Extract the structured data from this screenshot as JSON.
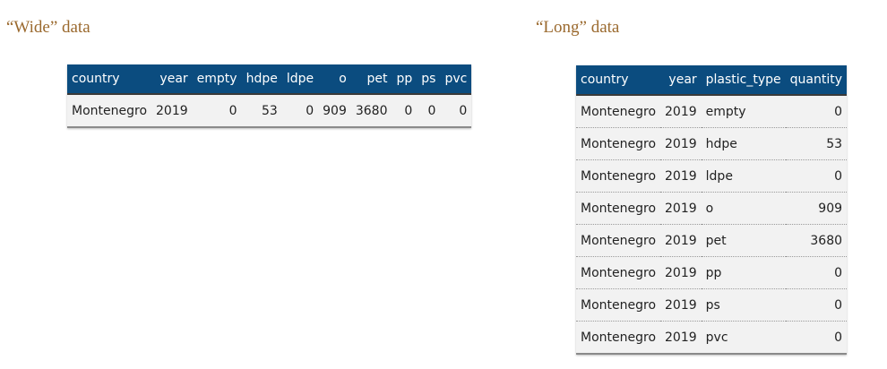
{
  "wide": {
    "caption": "“Wide” data",
    "headers": [
      "country",
      "year",
      "empty",
      "hdpe",
      "ldpe",
      "o",
      "pet",
      "pp",
      "ps",
      "pvc"
    ],
    "row": [
      "Montenegro",
      "2019",
      "0",
      "53",
      "0",
      "909",
      "3680",
      "0",
      "0",
      "0"
    ]
  },
  "long": {
    "caption": "“Long” data",
    "headers": [
      "country",
      "year",
      "plastic_type",
      "quantity"
    ],
    "rows": [
      [
        "Montenegro",
        "2019",
        "empty",
        "0"
      ],
      [
        "Montenegro",
        "2019",
        "hdpe",
        "53"
      ],
      [
        "Montenegro",
        "2019",
        "ldpe",
        "0"
      ],
      [
        "Montenegro",
        "2019",
        "o",
        "909"
      ],
      [
        "Montenegro",
        "2019",
        "pet",
        "3680"
      ],
      [
        "Montenegro",
        "2019",
        "pp",
        "0"
      ],
      [
        "Montenegro",
        "2019",
        "ps",
        "0"
      ],
      [
        "Montenegro",
        "2019",
        "pvc",
        "0"
      ]
    ]
  },
  "colors": {
    "header_bg": "#0b4c7f",
    "caption": "#9b6a2f",
    "row_bg": "#f2f2f2"
  }
}
